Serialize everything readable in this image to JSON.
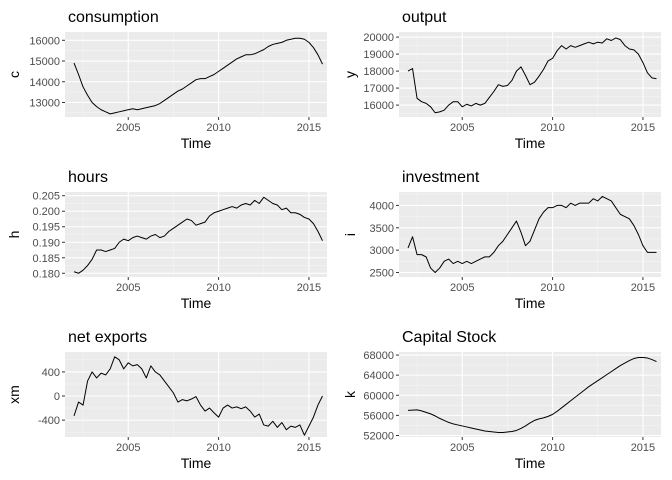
{
  "chart_data": [
    {
      "type": "line",
      "title": "consumption",
      "xlabel": "Time",
      "ylabel": "c",
      "xlim": [
        2001.5,
        2016.0
      ],
      "ylim": [
        12300,
        16400
      ],
      "x_ticks": [
        2005,
        2010,
        2015
      ],
      "x_tick_labels": [
        "2005",
        "2010",
        "2015"
      ],
      "y_ticks": [
        13000,
        14000,
        15000,
        16000
      ],
      "y_tick_labels": [
        "13000",
        "14000",
        "15000",
        "16000"
      ],
      "grid": true,
      "x": [
        2002.0,
        2002.25,
        2002.5,
        2002.75,
        2003.0,
        2003.25,
        2003.5,
        2003.75,
        2004.0,
        2004.25,
        2004.5,
        2004.75,
        2005.0,
        2005.25,
        2005.5,
        2005.75,
        2006.0,
        2006.25,
        2006.5,
        2006.75,
        2007.0,
        2007.25,
        2007.5,
        2007.75,
        2008.0,
        2008.25,
        2008.5,
        2008.75,
        2009.0,
        2009.25,
        2009.5,
        2009.75,
        2010.0,
        2010.25,
        2010.5,
        2010.75,
        2011.0,
        2011.25,
        2011.5,
        2011.75,
        2012.0,
        2012.25,
        2012.5,
        2012.75,
        2013.0,
        2013.25,
        2013.5,
        2013.75,
        2014.0,
        2014.25,
        2014.5,
        2014.75,
        2015.0,
        2015.25,
        2015.5,
        2015.75
      ],
      "y": [
        14900,
        14350,
        13750,
        13350,
        13000,
        12800,
        12650,
        12550,
        12450,
        12500,
        12550,
        12600,
        12650,
        12700,
        12650,
        12700,
        12750,
        12800,
        12850,
        12950,
        13100,
        13250,
        13400,
        13550,
        13650,
        13800,
        13950,
        14100,
        14150,
        14150,
        14250,
        14350,
        14500,
        14650,
        14800,
        14950,
        15100,
        15200,
        15300,
        15300,
        15350,
        15450,
        15550,
        15700,
        15800,
        15850,
        15900,
        16000,
        16050,
        16100,
        16100,
        16050,
        15900,
        15650,
        15300,
        14850
      ]
    },
    {
      "type": "line",
      "title": "output",
      "xlabel": "Time",
      "ylabel": "y",
      "xlim": [
        2001.5,
        2016.0
      ],
      "ylim": [
        15300,
        20300
      ],
      "x_ticks": [
        2005,
        2010,
        2015
      ],
      "x_tick_labels": [
        "2005",
        "2010",
        "2015"
      ],
      "y_ticks": [
        16000,
        17000,
        18000,
        19000,
        20000
      ],
      "y_tick_labels": [
        "16000",
        "17000",
        "18000",
        "19000",
        "20000"
      ],
      "grid": true,
      "x": [
        2002.0,
        2002.25,
        2002.5,
        2002.75,
        2003.0,
        2003.25,
        2003.5,
        2003.75,
        2004.0,
        2004.25,
        2004.5,
        2004.75,
        2005.0,
        2005.25,
        2005.5,
        2005.75,
        2006.0,
        2006.25,
        2006.5,
        2006.75,
        2007.0,
        2007.25,
        2007.5,
        2007.75,
        2008.0,
        2008.25,
        2008.5,
        2008.75,
        2009.0,
        2009.25,
        2009.5,
        2009.75,
        2010.0,
        2010.25,
        2010.5,
        2010.75,
        2011.0,
        2011.25,
        2011.5,
        2011.75,
        2012.0,
        2012.25,
        2012.5,
        2012.75,
        2013.0,
        2013.25,
        2013.5,
        2013.75,
        2014.0,
        2014.25,
        2014.5,
        2014.75,
        2015.0,
        2015.25,
        2015.5,
        2015.75
      ],
      "y": [
        18000,
        18150,
        16400,
        16200,
        16100,
        15900,
        15550,
        15600,
        15700,
        16000,
        16200,
        16200,
        15900,
        16050,
        15950,
        16100,
        16000,
        16100,
        16450,
        16800,
        17200,
        17100,
        17150,
        17450,
        18000,
        18250,
        17750,
        17200,
        17350,
        17700,
        18100,
        18600,
        18750,
        19200,
        19500,
        19300,
        19500,
        19400,
        19500,
        19600,
        19700,
        19600,
        19700,
        19650,
        19900,
        19800,
        19950,
        19850,
        19500,
        19300,
        19250,
        19000,
        18500,
        17900,
        17600,
        17550
      ]
    },
    {
      "type": "line",
      "title": "hours",
      "xlabel": "Time",
      "ylabel": "h",
      "xlim": [
        2001.5,
        2016.0
      ],
      "ylim": [
        0.1788,
        0.2062
      ],
      "x_ticks": [
        2005,
        2010,
        2015
      ],
      "x_tick_labels": [
        "2005",
        "2010",
        "2015"
      ],
      "y_ticks": [
        0.18,
        0.185,
        0.19,
        0.195,
        0.2,
        0.205
      ],
      "y_tick_labels": [
        "0.180",
        "0.185",
        "0.190",
        "0.195",
        "0.200",
        "0.205"
      ],
      "grid": true,
      "x": [
        2002.0,
        2002.25,
        2002.5,
        2002.75,
        2003.0,
        2003.25,
        2003.5,
        2003.75,
        2004.0,
        2004.25,
        2004.5,
        2004.75,
        2005.0,
        2005.25,
        2005.5,
        2005.75,
        2006.0,
        2006.25,
        2006.5,
        2006.75,
        2007.0,
        2007.25,
        2007.5,
        2007.75,
        2008.0,
        2008.25,
        2008.5,
        2008.75,
        2009.0,
        2009.25,
        2009.5,
        2009.75,
        2010.0,
        2010.25,
        2010.5,
        2010.75,
        2011.0,
        2011.25,
        2011.5,
        2011.75,
        2012.0,
        2012.25,
        2012.5,
        2012.75,
        2013.0,
        2013.25,
        2013.5,
        2013.75,
        2014.0,
        2014.25,
        2014.5,
        2014.75,
        2015.0,
        2015.25,
        2015.5,
        2015.75
      ],
      "y": [
        0.1805,
        0.18,
        0.181,
        0.1825,
        0.1845,
        0.1875,
        0.1875,
        0.187,
        0.1875,
        0.188,
        0.19,
        0.191,
        0.1905,
        0.1915,
        0.192,
        0.1915,
        0.191,
        0.192,
        0.1925,
        0.1915,
        0.192,
        0.1935,
        0.1945,
        0.1955,
        0.1965,
        0.1975,
        0.197,
        0.1955,
        0.196,
        0.1965,
        0.1985,
        0.1995,
        0.2,
        0.2005,
        0.201,
        0.2015,
        0.201,
        0.202,
        0.2025,
        0.202,
        0.2035,
        0.2025,
        0.2045,
        0.2035,
        0.2025,
        0.202,
        0.2005,
        0.201,
        0.1995,
        0.1995,
        0.199,
        0.198,
        0.1975,
        0.196,
        0.1935,
        0.1905
      ]
    },
    {
      "type": "line",
      "title": "investment",
      "xlabel": "Time",
      "ylabel": "i",
      "xlim": [
        2001.5,
        2016.0
      ],
      "ylim": [
        2400,
        4300
      ],
      "x_ticks": [
        2005,
        2010,
        2015
      ],
      "x_tick_labels": [
        "2005",
        "2010",
        "2015"
      ],
      "y_ticks": [
        2500,
        3000,
        3500,
        4000
      ],
      "y_tick_labels": [
        "2500",
        "3000",
        "3500",
        "4000"
      ],
      "grid": true,
      "x": [
        2002.0,
        2002.25,
        2002.5,
        2002.75,
        2003.0,
        2003.25,
        2003.5,
        2003.75,
        2004.0,
        2004.25,
        2004.5,
        2004.75,
        2005.0,
        2005.25,
        2005.5,
        2005.75,
        2006.0,
        2006.25,
        2006.5,
        2006.75,
        2007.0,
        2007.25,
        2007.5,
        2007.75,
        2008.0,
        2008.25,
        2008.5,
        2008.75,
        2009.0,
        2009.25,
        2009.5,
        2009.75,
        2010.0,
        2010.25,
        2010.5,
        2010.75,
        2011.0,
        2011.25,
        2011.5,
        2011.75,
        2012.0,
        2012.25,
        2012.5,
        2012.75,
        2013.0,
        2013.25,
        2013.5,
        2013.75,
        2014.0,
        2014.25,
        2014.5,
        2014.75,
        2015.0,
        2015.25,
        2015.5,
        2015.75
      ],
      "y": [
        3050,
        3300,
        2900,
        2900,
        2850,
        2600,
        2500,
        2600,
        2750,
        2800,
        2700,
        2750,
        2700,
        2750,
        2700,
        2750,
        2800,
        2850,
        2850,
        2950,
        3100,
        3200,
        3350,
        3500,
        3650,
        3400,
        3100,
        3200,
        3450,
        3700,
        3850,
        3950,
        3950,
        4000,
        4000,
        3950,
        4050,
        4000,
        4050,
        4050,
        4050,
        4150,
        4100,
        4200,
        4150,
        4100,
        3950,
        3800,
        3750,
        3700,
        3550,
        3350,
        3100,
        2950,
        2950,
        2950
      ]
    },
    {
      "type": "line",
      "title": "net exports",
      "xlabel": "Time",
      "ylabel": "xm",
      "xlim": [
        2001.5,
        2016.0
      ],
      "ylim": [
        -680,
        730
      ],
      "x_ticks": [
        2005,
        2010,
        2015
      ],
      "x_tick_labels": [
        "2005",
        "2010",
        "2015"
      ],
      "y_ticks": [
        -400,
        0,
        400
      ],
      "y_tick_labels": [
        "-400",
        "0",
        "400"
      ],
      "grid": true,
      "x": [
        2002.0,
        2002.25,
        2002.5,
        2002.75,
        2003.0,
        2003.25,
        2003.5,
        2003.75,
        2004.0,
        2004.25,
        2004.5,
        2004.75,
        2005.0,
        2005.25,
        2005.5,
        2005.75,
        2006.0,
        2006.25,
        2006.5,
        2006.75,
        2007.0,
        2007.25,
        2007.5,
        2007.75,
        2008.0,
        2008.25,
        2008.5,
        2008.75,
        2009.0,
        2009.25,
        2009.5,
        2009.75,
        2010.0,
        2010.25,
        2010.5,
        2010.75,
        2011.0,
        2011.25,
        2011.5,
        2011.75,
        2012.0,
        2012.25,
        2012.5,
        2012.75,
        2013.0,
        2013.25,
        2013.5,
        2013.75,
        2014.0,
        2014.25,
        2014.5,
        2014.75,
        2015.0,
        2015.25,
        2015.5,
        2015.75
      ],
      "y": [
        -330,
        -100,
        -150,
        250,
        400,
        300,
        380,
        350,
        450,
        650,
        600,
        450,
        550,
        500,
        520,
        450,
        300,
        500,
        400,
        350,
        250,
        150,
        50,
        -100,
        -60,
        -80,
        -50,
        -10,
        -150,
        -250,
        -200,
        -280,
        -350,
        -200,
        -150,
        -200,
        -180,
        -210,
        -180,
        -250,
        -350,
        -300,
        -480,
        -500,
        -420,
        -520,
        -440,
        -560,
        -500,
        -520,
        -480,
        -650,
        -500,
        -350,
        -150,
        0
      ]
    },
    {
      "type": "line",
      "title": "Capital Stock",
      "xlabel": "Time",
      "ylabel": "k",
      "xlim": [
        2001.5,
        2016.0
      ],
      "ylim": [
        51700,
        68600
      ],
      "x_ticks": [
        2005,
        2010,
        2015
      ],
      "x_tick_labels": [
        "2005",
        "2010",
        "2015"
      ],
      "y_ticks": [
        52000,
        56000,
        60000,
        64000,
        68000
      ],
      "y_tick_labels": [
        "52000",
        "56000",
        "60000",
        "64000",
        "68000"
      ],
      "grid": true,
      "x": [
        2002.0,
        2002.25,
        2002.5,
        2002.75,
        2003.0,
        2003.25,
        2003.5,
        2003.75,
        2004.0,
        2004.25,
        2004.5,
        2004.75,
        2005.0,
        2005.25,
        2005.5,
        2005.75,
        2006.0,
        2006.25,
        2006.5,
        2006.75,
        2007.0,
        2007.25,
        2007.5,
        2007.75,
        2008.0,
        2008.25,
        2008.5,
        2008.75,
        2009.0,
        2009.25,
        2009.5,
        2009.75,
        2010.0,
        2010.25,
        2010.5,
        2010.75,
        2011.0,
        2011.25,
        2011.5,
        2011.75,
        2012.0,
        2012.25,
        2012.5,
        2012.75,
        2013.0,
        2013.25,
        2013.5,
        2013.75,
        2014.0,
        2014.25,
        2014.5,
        2014.75,
        2015.0,
        2015.25,
        2015.5,
        2015.75
      ],
      "y": [
        57000,
        57050,
        57100,
        56900,
        56600,
        56300,
        55900,
        55400,
        55000,
        54600,
        54300,
        54100,
        53900,
        53700,
        53500,
        53300,
        53100,
        52900,
        52800,
        52700,
        52600,
        52600,
        52700,
        52800,
        53000,
        53400,
        53900,
        54500,
        55000,
        55300,
        55500,
        55800,
        56200,
        56800,
        57500,
        58200,
        58900,
        59600,
        60300,
        61000,
        61700,
        62300,
        62900,
        63500,
        64100,
        64700,
        65300,
        65900,
        66400,
        66900,
        67300,
        67500,
        67500,
        67400,
        67100,
        66700
      ]
    }
  ]
}
